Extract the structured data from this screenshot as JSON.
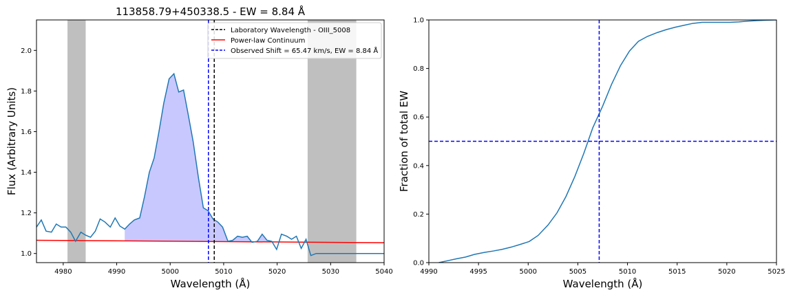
{
  "chart_data": [
    {
      "type": "line",
      "title": "113858.79+450338.5 - EW = 8.84 Å",
      "xlabel": "Wavelength (Å)",
      "ylabel": "Flux (Arbitrary Units)",
      "xlim": [
        4975,
        5040
      ],
      "ylim": [
        0.955,
        2.15
      ],
      "xticks": [
        4980,
        4990,
        5000,
        5010,
        5020,
        5030,
        5040
      ],
      "xtick_labels": [
        "4980",
        "4990",
        "5000",
        "5010",
        "5020",
        "5030",
        "5040"
      ],
      "yticks": [
        1.0,
        1.2,
        1.4,
        1.6,
        1.8,
        2.0
      ],
      "ytick_labels": [
        "1.0",
        "1.2",
        "1.4",
        "1.6",
        "1.8",
        "2.0"
      ],
      "grid": false,
      "legend_position": "top-right",
      "masked_regions": [
        [
          4980.8,
          4984.2
        ],
        [
          5025.7,
          5034.8
        ]
      ],
      "fill_range": [
        4991,
        5020
      ],
      "fill_color": "#c8c8ff",
      "vlines": [
        {
          "name": "Laboratory Wavelength - OIII_5008",
          "x": 5008.24,
          "color": "#000000",
          "dashed": true
        },
        {
          "name": "Observed Shift = 65.47 km/s, EW = 8.84 Å",
          "x": 5007.15,
          "color": "#0000ff",
          "dashed": true
        }
      ],
      "series": [
        {
          "name": "Power-law Continuum",
          "color": "#ff0000",
          "x": [
            4975,
            5040
          ],
          "y": [
            1.065,
            1.053
          ]
        },
        {
          "name": "",
          "color": "#1f77b4",
          "x": [
            4975.0,
            4975.9,
            4976.8,
            4977.8,
            4978.7,
            4979.6,
            4980.5,
            4981.4,
            4982.3,
            4983.3,
            4984.2,
            4985.1,
            4986.0,
            4986.9,
            4987.8,
            4988.8,
            4989.7,
            4990.6,
            4991.5,
            4992.4,
            4993.3,
            4994.3,
            4995.2,
            4996.1,
            4997.0,
            4997.9,
            4998.8,
            4999.8,
            5000.7,
            5001.6,
            5002.5,
            5003.4,
            5004.3,
            5005.3,
            5006.2,
            5007.1,
            5008.0,
            5008.9,
            5009.8,
            5010.8,
            5011.7,
            5012.6,
            5013.5,
            5014.4,
            5015.3,
            5016.3,
            5017.2,
            5018.1,
            5019.0,
            5019.9,
            5020.8,
            5021.8,
            5022.7,
            5023.6,
            5024.5,
            5025.4,
            5026.3,
            5027.3,
            5028.2,
            5029.1,
            5030.0,
            5030.9,
            5031.8,
            5032.8,
            5033.7,
            5034.6,
            5035.5,
            5036.4,
            5037.3,
            5038.3,
            5039.2,
            5040.0
          ],
          "y": [
            1.13,
            1.165,
            1.11,
            1.105,
            1.145,
            1.13,
            1.13,
            1.105,
            1.06,
            1.105,
            1.09,
            1.08,
            1.11,
            1.17,
            1.155,
            1.13,
            1.175,
            1.135,
            1.12,
            1.145,
            1.165,
            1.175,
            1.28,
            1.4,
            1.47,
            1.6,
            1.74,
            1.86,
            1.885,
            1.795,
            1.805,
            1.68,
            1.55,
            1.37,
            1.225,
            1.21,
            1.17,
            1.155,
            1.13,
            1.06,
            1.065,
            1.085,
            1.08,
            1.085,
            1.055,
            1.06,
            1.095,
            1.065,
            1.06,
            1.02,
            1.095,
            1.085,
            1.07,
            1.085,
            1.025,
            1.07,
            0.99,
            1.0,
            1.0,
            1.0,
            1.0,
            1.0,
            1.0,
            1.0,
            1.0,
            1.0,
            1.0,
            1.0,
            1.0,
            1.0,
            1.0,
            1.0
          ]
        }
      ]
    },
    {
      "type": "line",
      "title": "",
      "xlabel": "Wavelength (Å)",
      "ylabel": "Fraction of total EW",
      "xlim": [
        4990,
        5025
      ],
      "ylim": [
        0.0,
        1.0
      ],
      "xticks": [
        4990,
        4995,
        5000,
        5005,
        5010,
        5015,
        5020,
        5025
      ],
      "xtick_labels": [
        "4990",
        "4995",
        "5000",
        "5005",
        "5010",
        "5015",
        "5020",
        "5025"
      ],
      "yticks": [
        0.0,
        0.2,
        0.4,
        0.6,
        0.8,
        1.0
      ],
      "ytick_labels": [
        "0.0",
        "0.2",
        "0.4",
        "0.6",
        "0.8",
        "1.0"
      ],
      "grid": false,
      "hlines": [
        {
          "y": 0.5,
          "color": "#0000ff",
          "dashed": true
        }
      ],
      "vlines": [
        {
          "x": 5007.15,
          "color": "#0000ff",
          "dashed": true
        }
      ],
      "series": [
        {
          "name": "",
          "color": "#1f77b4",
          "x": [
            4991.0,
            4991.9,
            4992.8,
            4993.7,
            4994.6,
            4995.6,
            4996.5,
            4997.4,
            4998.3,
            4999.2,
            5000.1,
            5001.0,
            5002.0,
            5002.9,
            5003.8,
            5004.7,
            5005.6,
            5006.5,
            5007.5,
            5008.4,
            5009.3,
            5010.2,
            5011.1,
            5012.0,
            5013.0,
            5013.9,
            5014.8,
            5015.7,
            5016.6,
            5017.5,
            5018.5,
            5019.4,
            5020.3,
            5021.2,
            5022.1,
            5023.0,
            5024.0,
            5025.0
          ],
          "y": [
            0.0,
            0.008,
            0.016,
            0.023,
            0.034,
            0.042,
            0.048,
            0.055,
            0.064,
            0.075,
            0.087,
            0.112,
            0.155,
            0.205,
            0.272,
            0.355,
            0.45,
            0.555,
            0.645,
            0.735,
            0.812,
            0.872,
            0.912,
            0.932,
            0.948,
            0.96,
            0.97,
            0.978,
            0.986,
            0.99,
            0.99,
            0.99,
            0.99,
            0.992,
            0.995,
            0.997,
            0.999,
            1.0
          ]
        }
      ]
    }
  ]
}
